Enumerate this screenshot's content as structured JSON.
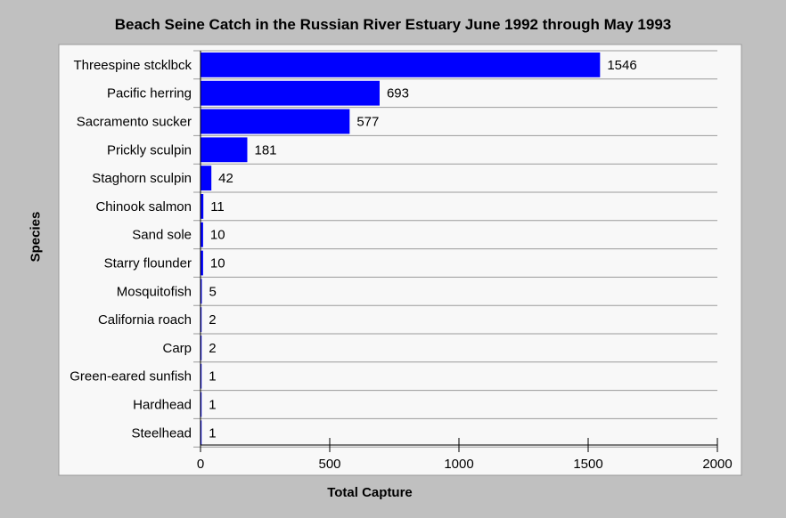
{
  "chart_data": {
    "type": "bar",
    "orientation": "horizontal",
    "title": "Beach Seine Catch in the Russian River Estuary June 1992 through May 1993",
    "xlabel": "Total Capture",
    "ylabel": "Species",
    "xlim": [
      0,
      2000
    ],
    "xticks": [
      0,
      500,
      1000,
      1500,
      2000
    ],
    "grid": "horizontal",
    "categories": [
      "Threespine stcklbck",
      "Pacific herring",
      "Sacramento sucker",
      "Prickly sculpin",
      "Staghorn sculpin",
      "Chinook salmon",
      "Sand sole",
      "Starry flounder",
      "Mosquitofish",
      "California roach",
      "Carp",
      "Green-eared sunfish",
      "Hardhead",
      "Steelhead"
    ],
    "values": [
      1546,
      693,
      577,
      181,
      42,
      11,
      10,
      10,
      5,
      2,
      2,
      1,
      1,
      1
    ],
    "bar_color": "#0000ff",
    "plot_background": "#f8f8f8",
    "page_background": "#c0c0c0"
  }
}
